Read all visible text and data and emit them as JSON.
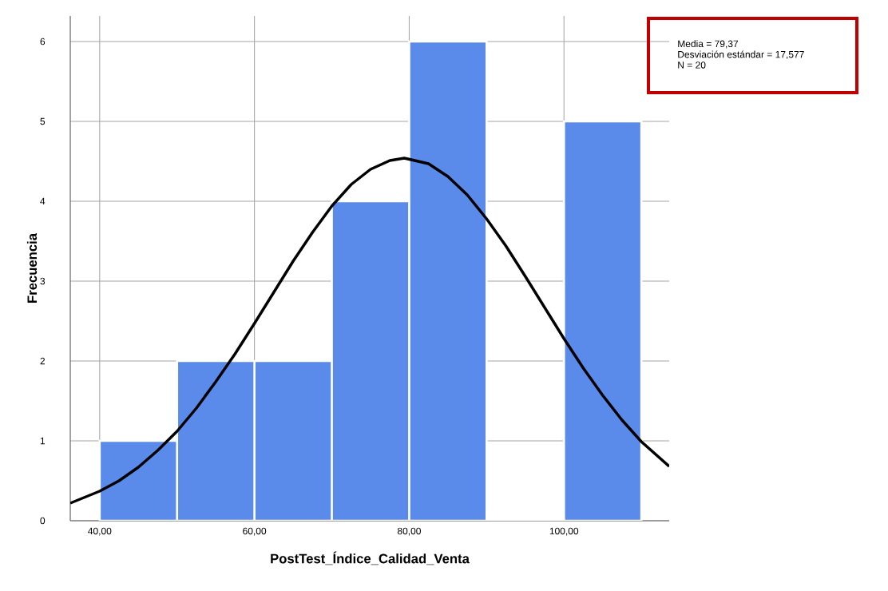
{
  "chart_data": {
    "type": "histogram",
    "xlabel": "PostTest_Índice_Calidad_Venta",
    "ylabel": "Frecuencia",
    "annotations": [
      "Media = 79,37",
      "Desviación estándar = 17,577",
      "N = 20"
    ],
    "bins": [
      40,
      50,
      60,
      70,
      80,
      90,
      100,
      110
    ],
    "values": [
      1,
      2,
      2,
      4,
      6,
      0,
      5
    ],
    "color": "#5b8bea",
    "series": [
      {
        "type": "line",
        "color": "#000000",
        "x": [
          36.2,
          40,
          42.5,
          45,
          47.5,
          50,
          52.5,
          55,
          57.5,
          60,
          62.5,
          65,
          67.5,
          70,
          72.5,
          75,
          77.5,
          79.37,
          82.5,
          85,
          87.5,
          90,
          92.5,
          95,
          97.5,
          100,
          102.5,
          105,
          107.5,
          110,
          113.6
        ],
        "values": [
          0.22,
          0.37,
          0.5,
          0.67,
          0.88,
          1.12,
          1.41,
          1.74,
          2.09,
          2.47,
          2.86,
          3.25,
          3.61,
          3.94,
          4.21,
          4.4,
          4.51,
          4.54,
          4.47,
          4.31,
          4.08,
          3.78,
          3.44,
          3.06,
          2.67,
          2.28,
          1.91,
          1.57,
          1.26,
          0.99,
          0.68
        ]
      }
    ],
    "xlim": [
      36.2,
      113.6
    ],
    "ylim": [
      0,
      6.32
    ],
    "xticks": [
      {
        "value": 40,
        "label": "40,00"
      },
      {
        "value": 60,
        "label": "60,00"
      },
      {
        "value": 80,
        "label": "80,00"
      },
      {
        "value": 100,
        "label": "100,00"
      }
    ],
    "yticks": [
      0,
      1,
      2,
      3,
      4,
      5,
      6
    ],
    "grid": true,
    "marker": "none",
    "line_style": "solid"
  }
}
